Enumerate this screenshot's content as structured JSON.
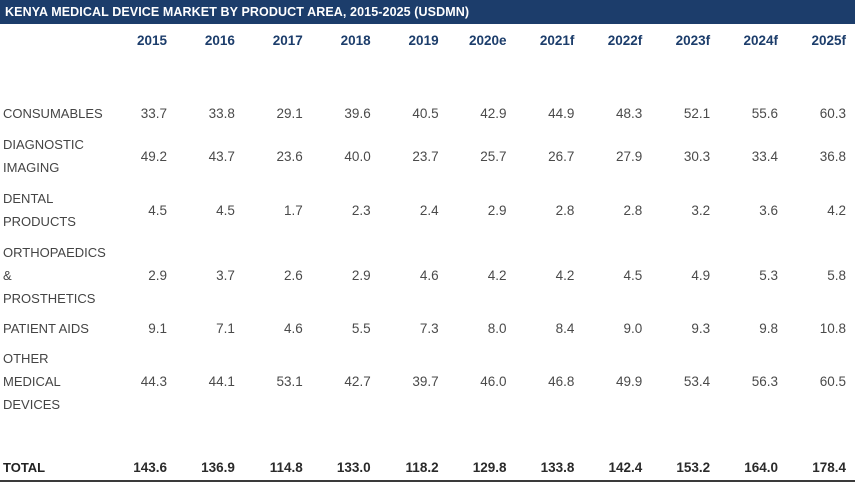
{
  "title": "KENYA MEDICAL DEVICE MARKET BY PRODUCT AREA, 2015-2025 (USDMN)",
  "columns": [
    "2015",
    "2016",
    "2017",
    "2018",
    "2019",
    "2020e",
    "2021f",
    "2022f",
    "2023f",
    "2024f",
    "2025f"
  ],
  "rows": [
    {
      "label": "CONSUMABLES",
      "values": [
        "33.7",
        "33.8",
        "29.1",
        "39.6",
        "40.5",
        "42.9",
        "44.9",
        "48.3",
        "52.1",
        "55.6",
        "60.3"
      ]
    },
    {
      "label": "DIAGNOSTIC IMAGING",
      "values": [
        "49.2",
        "43.7",
        "23.6",
        "40.0",
        "23.7",
        "25.7",
        "26.7",
        "27.9",
        "30.3",
        "33.4",
        "36.8"
      ]
    },
    {
      "label": "DENTAL PRODUCTS",
      "values": [
        "4.5",
        "4.5",
        "1.7",
        "2.3",
        "2.4",
        "2.9",
        "2.8",
        "2.8",
        "3.2",
        "3.6",
        "4.2"
      ]
    },
    {
      "label": "ORTHOPAEDICS & PROSTHETICS",
      "values": [
        "2.9",
        "3.7",
        "2.6",
        "2.9",
        "4.6",
        "4.2",
        "4.2",
        "4.5",
        "4.9",
        "5.3",
        "5.8"
      ]
    },
    {
      "label": "PATIENT AIDS",
      "values": [
        "9.1",
        "7.1",
        "4.6",
        "5.5",
        "7.3",
        "8.0",
        "8.4",
        "9.0",
        "9.3",
        "9.8",
        "10.8"
      ]
    },
    {
      "label": "OTHER MEDICAL DEVICES",
      "values": [
        "44.3",
        "44.1",
        "53.1",
        "42.7",
        "39.7",
        "46.0",
        "46.8",
        "49.9",
        "53.4",
        "56.3",
        "60.5"
      ]
    }
  ],
  "total": {
    "label": "TOTAL",
    "values": [
      "143.6",
      "136.9",
      "114.8",
      "133.0",
      "118.2",
      "129.8",
      "133.8",
      "142.4",
      "153.2",
      "164.0",
      "178.4"
    ]
  },
  "colors": {
    "title_bg": "#1c3d6b",
    "header_text": "#1c3d6b"
  }
}
